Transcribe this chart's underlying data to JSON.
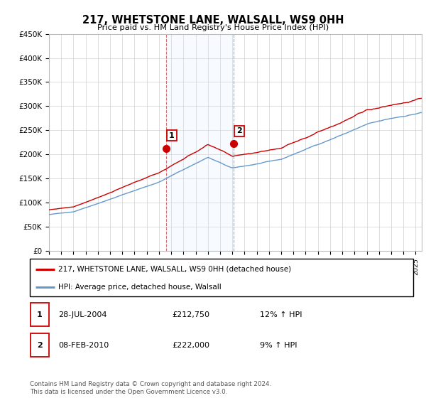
{
  "title": "217, WHETSTONE LANE, WALSALL, WS9 0HH",
  "subtitle": "Price paid vs. HM Land Registry's House Price Index (HPI)",
  "ylabel_ticks": [
    "£0",
    "£50K",
    "£100K",
    "£150K",
    "£200K",
    "£250K",
    "£300K",
    "£350K",
    "£400K",
    "£450K"
  ],
  "ylim": [
    0,
    450000
  ],
  "xlim_start": 1995.0,
  "xlim_end": 2025.5,
  "line_color_red": "#cc0000",
  "line_color_blue": "#6699cc",
  "shade_color": "#ddeeff",
  "marker1_x": 2004.57,
  "marker1_y": 212750,
  "marker1_label": "1",
  "marker2_x": 2010.1,
  "marker2_y": 222000,
  "marker2_label": "2",
  "legend_label_red": "217, WHETSTONE LANE, WALSALL, WS9 0HH (detached house)",
  "legend_label_blue": "HPI: Average price, detached house, Walsall",
  "table_data": [
    [
      "1",
      "28-JUL-2004",
      "£212,750",
      "12% ↑ HPI"
    ],
    [
      "2",
      "08-FEB-2010",
      "£222,000",
      "9% ↑ HPI"
    ]
  ],
  "footer_text": "Contains HM Land Registry data © Crown copyright and database right 2024.\nThis data is licensed under the Open Government Licence v3.0.",
  "background_color": "#ffffff",
  "grid_color": "#cccccc"
}
